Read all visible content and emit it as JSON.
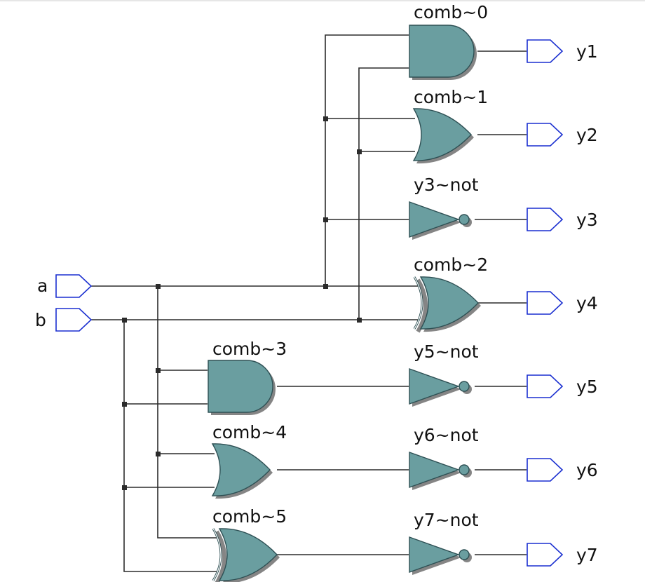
{
  "colors": {
    "gate_fill": "#6a9ea0",
    "gate_stroke": "#2e5054",
    "gate_shadow": "#858585",
    "port_stroke": "#1a2fd0",
    "wire": "#2b2b2b"
  },
  "inputs": [
    {
      "id": "a",
      "label": "a"
    },
    {
      "id": "b",
      "label": "b"
    }
  ],
  "gates": [
    {
      "id": "comb0",
      "type": "and",
      "label": "comb~0"
    },
    {
      "id": "comb1",
      "type": "or",
      "label": "comb~1"
    },
    {
      "id": "y3not",
      "type": "not",
      "label": "y3~not"
    },
    {
      "id": "comb2",
      "type": "xor",
      "label": "comb~2"
    },
    {
      "id": "comb3",
      "type": "and",
      "label": "comb~3"
    },
    {
      "id": "y5not",
      "type": "not",
      "label": "y5~not"
    },
    {
      "id": "comb4",
      "type": "or",
      "label": "comb~4"
    },
    {
      "id": "y6not",
      "type": "not",
      "label": "y6~not"
    },
    {
      "id": "comb5",
      "type": "xor",
      "label": "comb~5"
    },
    {
      "id": "y7not",
      "type": "not",
      "label": "y7~not"
    }
  ],
  "outputs": [
    {
      "id": "y1",
      "label": "y1"
    },
    {
      "id": "y2",
      "label": "y2"
    },
    {
      "id": "y3",
      "label": "y3"
    },
    {
      "id": "y4",
      "label": "y4"
    },
    {
      "id": "y5",
      "label": "y5"
    },
    {
      "id": "y6",
      "label": "y6"
    },
    {
      "id": "y7",
      "label": "y7"
    }
  ]
}
